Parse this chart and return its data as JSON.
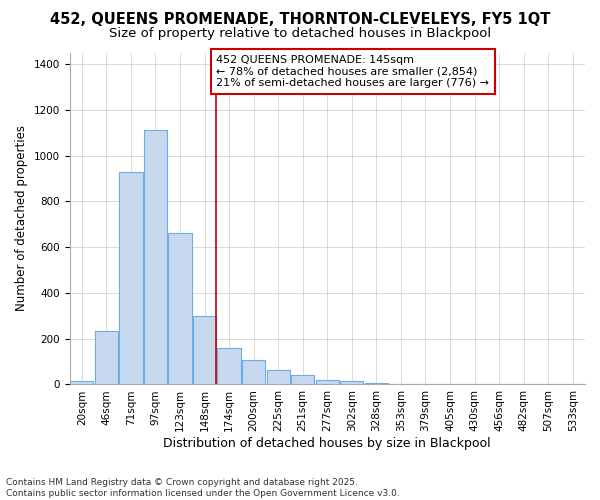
{
  "title_line1": "452, QUEENS PROMENADE, THORNTON-CLEVELEYS, FY5 1QT",
  "title_line2": "Size of property relative to detached houses in Blackpool",
  "xlabel": "Distribution of detached houses by size in Blackpool",
  "ylabel": "Number of detached properties",
  "categories": [
    "20sqm",
    "46sqm",
    "71sqm",
    "97sqm",
    "123sqm",
    "148sqm",
    "174sqm",
    "200sqm",
    "225sqm",
    "251sqm",
    "277sqm",
    "302sqm",
    "328sqm",
    "353sqm",
    "379sqm",
    "405sqm",
    "430sqm",
    "456sqm",
    "482sqm",
    "507sqm",
    "533sqm"
  ],
  "values": [
    15,
    235,
    930,
    1110,
    660,
    300,
    160,
    105,
    65,
    40,
    20,
    15,
    5,
    0,
    0,
    0,
    0,
    0,
    0,
    0,
    0
  ],
  "bar_color": "#c8d9ef",
  "bar_edge_color": "#6aaee8",
  "bar_linewidth": 0.8,
  "grid_color": "#cccccc",
  "bg_color": "#ffffff",
  "red_line_index": 5,
  "annotation_text": "452 QUEENS PROMENADE: 145sqm\n← 78% of detached houses are smaller (2,854)\n21% of semi-detached houses are larger (776) →",
  "annotation_box_color": "#ffffff",
  "annotation_edge_color": "#cc0000",
  "red_line_color": "#cc0000",
  "ylim": [
    0,
    1450
  ],
  "footnote": "Contains HM Land Registry data © Crown copyright and database right 2025.\nContains public sector information licensed under the Open Government Licence v3.0.",
  "title_fontsize": 10.5,
  "subtitle_fontsize": 9.5,
  "xlabel_fontsize": 9,
  "ylabel_fontsize": 8.5,
  "tick_fontsize": 7.5,
  "annot_fontsize": 8,
  "footnote_fontsize": 6.5
}
